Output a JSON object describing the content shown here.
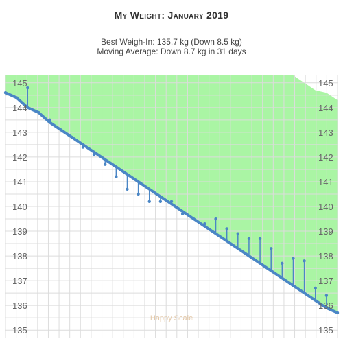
{
  "header": {
    "title": "My Weight: January 2019",
    "line1": "Best Weigh-In: 135.7 kg (Down 8.5 kg)",
    "line2": "Moving Average: Down 8.7 kg in 31 days"
  },
  "watermark": "Happy Scale",
  "colors": {
    "band": "#aaf5a4",
    "trend": "#4a86c5",
    "grid": "#dcdcdc",
    "axis_text": "#666666"
  },
  "chart_data": {
    "type": "line",
    "xlim": [
      1,
      31
    ],
    "ylim": [
      134.7,
      145.3
    ],
    "y_ticks": [
      135,
      136,
      137,
      138,
      139,
      140,
      141,
      142,
      143,
      144,
      145
    ],
    "grid": true,
    "series": [
      {
        "values": [
          144.6,
          144.4,
          144.0,
          143.8,
          143.4,
          143.1,
          142.8,
          142.5,
          142.2,
          141.9,
          141.6,
          141.3,
          141.0,
          140.7,
          140.4,
          140.1,
          139.8,
          139.5,
          139.2,
          138.9,
          138.6,
          138.3,
          138.0,
          137.7,
          137.4,
          137.1,
          136.8,
          136.5,
          136.2,
          135.9,
          135.7
        ]
      },
      {
        "values": [
          144.6,
          144.4,
          144.8,
          143.8,
          143.5,
          143.1,
          142.8,
          142.4,
          142.1,
          141.7,
          141.2,
          140.7,
          140.5,
          140.2,
          140.2,
          140.2,
          139.7,
          139.5,
          139.3,
          139.5,
          139.1,
          138.9,
          138.7,
          138.7,
          138.3,
          137.7,
          137.9,
          137.8,
          136.7,
          136.4,
          135.7
        ]
      },
      {
        "values": [
          145.5,
          145.5,
          145.5,
          145.5,
          145.5,
          145.5,
          145.5,
          145.5,
          145.5,
          145.5,
          145.5,
          145.5,
          145.5,
          145.5,
          145.5,
          145.5,
          145.5,
          145.5,
          145.5,
          145.5,
          145.5,
          145.5,
          145.5,
          145.5,
          145.5,
          145.5,
          145.3,
          145.0,
          144.7,
          144.6,
          144.3
        ]
      }
    ]
  }
}
